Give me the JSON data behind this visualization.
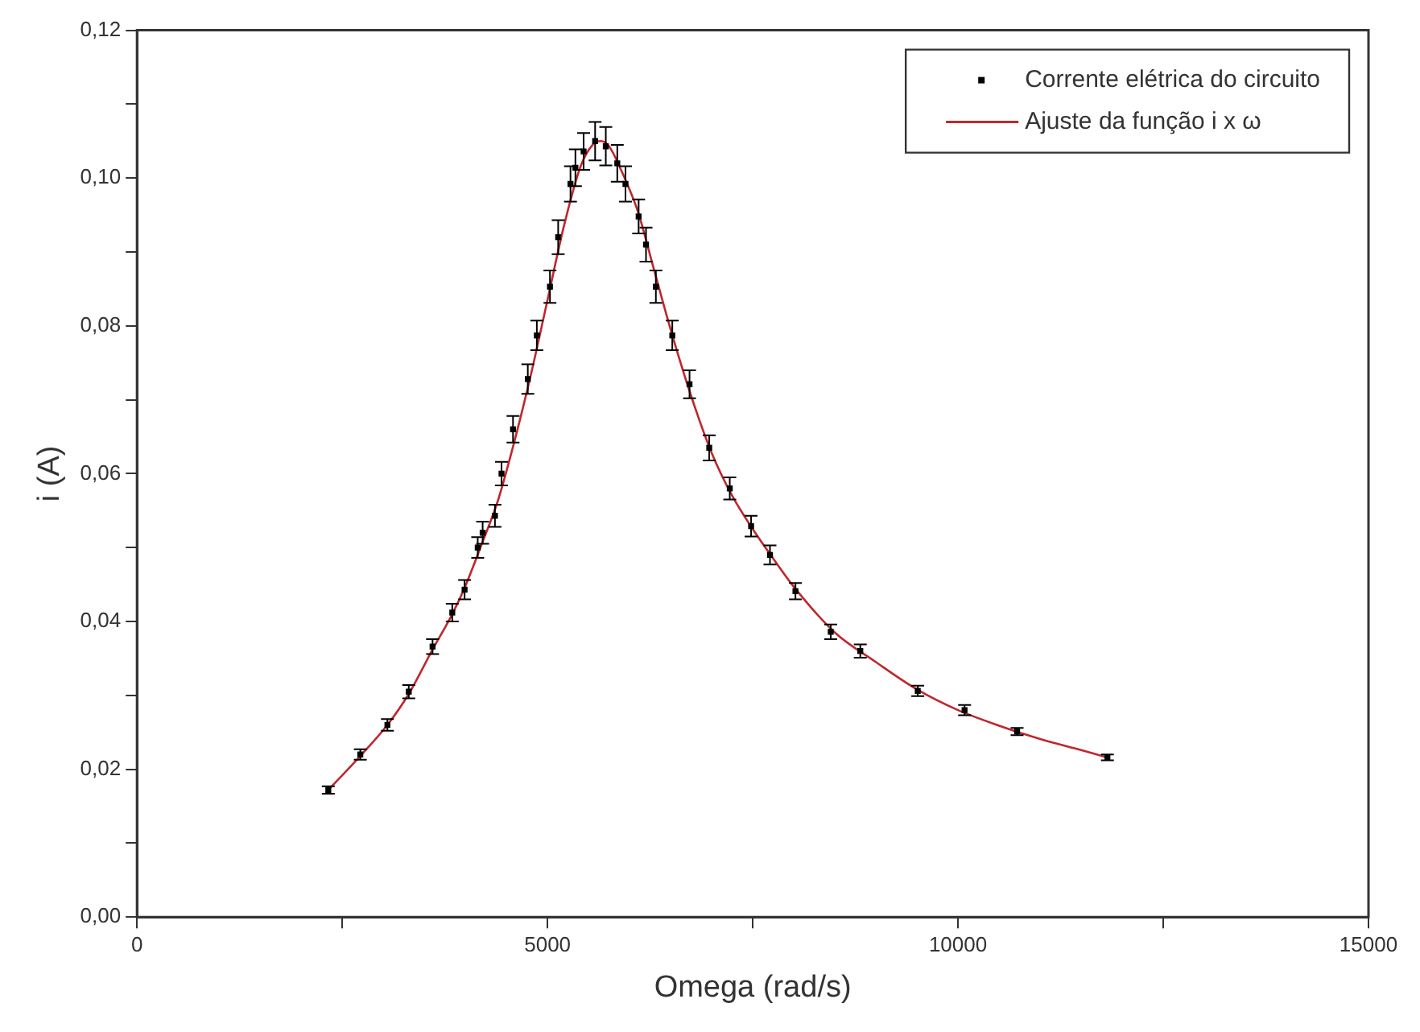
{
  "chart_data": {
    "type": "scatter",
    "xlabel": "Omega (rad/s)",
    "ylabel": "i (A)",
    "xlim": [
      0,
      15000
    ],
    "ylim": [
      0,
      0.12
    ],
    "xticks": [
      0,
      {
        "value": 2500,
        "label": null
      },
      5000,
      {
        "value": 7500,
        "label": null
      },
      10000,
      {
        "value": 12500,
        "label": null
      },
      15000
    ],
    "yticks": [
      {
        "value": 0,
        "label": "0,00"
      },
      {
        "value": 0.01,
        "label": null
      },
      {
        "value": 0.02,
        "label": "0,02"
      },
      {
        "value": 0.03,
        "label": null
      },
      {
        "value": 0.04,
        "label": "0,04"
      },
      {
        "value": 0.05,
        "label": null
      },
      {
        "value": 0.06,
        "label": "0,06"
      },
      {
        "value": 0.07,
        "label": null
      },
      {
        "value": 0.08,
        "label": "0,08"
      },
      {
        "value": 0.09,
        "label": null
      },
      {
        "value": 0.1,
        "label": "0,10"
      },
      {
        "value": 0.11,
        "label": null
      },
      {
        "value": 0.12,
        "label": "0,12"
      }
    ],
    "grid": false,
    "legend": "top right",
    "series": [
      {
        "name": "Corrente elétrica do circuito",
        "color": "#000000",
        "marker": "square",
        "x": [
          2330,
          2720,
          3050,
          3310,
          3600,
          3840,
          3990,
          4150,
          4210,
          4360,
          4440,
          4580,
          4760,
          4870,
          5030,
          5130,
          5280,
          5340,
          5440,
          5580,
          5710,
          5850,
          5950,
          6110,
          6200,
          6320,
          6520,
          6730,
          6970,
          7220,
          7480,
          7710,
          8020,
          8450,
          8810,
          9510,
          10080,
          10720,
          11820
        ],
        "values": [
          0.0172,
          0.022,
          0.026,
          0.0305,
          0.0366,
          0.0412,
          0.0443,
          0.05,
          0.052,
          0.0543,
          0.06,
          0.066,
          0.0728,
          0.0787,
          0.0853,
          0.092,
          0.0992,
          0.1014,
          0.1036,
          0.105,
          0.1043,
          0.102,
          0.0992,
          0.0948,
          0.091,
          0.0853,
          0.0787,
          0.0721,
          0.0635,
          0.058,
          0.0529,
          0.049,
          0.0441,
          0.0386,
          0.036,
          0.0306,
          0.028,
          0.0251,
          0.0216
        ],
        "errors": [
          0.0005,
          0.0007,
          0.0008,
          0.0009,
          0.001,
          0.0012,
          0.0013,
          0.0014,
          0.0015,
          0.0015,
          0.0016,
          0.0018,
          0.002,
          0.002,
          0.0022,
          0.0023,
          0.0024,
          0.0025,
          0.0025,
          0.0026,
          0.0026,
          0.0025,
          0.0024,
          0.0023,
          0.0023,
          0.0022,
          0.002,
          0.0019,
          0.0017,
          0.0015,
          0.0014,
          0.0013,
          0.0011,
          0.001,
          0.0009,
          0.0007,
          0.0007,
          0.0005,
          0.0004
        ]
      },
      {
        "name": "Ajuste da função i x ω",
        "type": "line",
        "color": "#c0272d",
        "marker": "none",
        "line_style": "solid",
        "x": [
          2330,
          2720,
          3050,
          3310,
          3600,
          3840,
          4000,
          4200,
          4400,
          4600,
          4800,
          5000,
          5200,
          5400,
          5550,
          5650,
          5750,
          5900,
          6100,
          6300,
          6500,
          6750,
          7000,
          7250,
          7500,
          7750,
          8000,
          8500,
          9000,
          9500,
          10000,
          10500,
          11000,
          11500,
          11820
        ],
        "values": [
          0.0172,
          0.0218,
          0.026,
          0.0302,
          0.0362,
          0.041,
          0.0448,
          0.0505,
          0.0565,
          0.0645,
          0.0735,
          0.0835,
          0.0935,
          0.1015,
          0.1045,
          0.105,
          0.1043,
          0.101,
          0.0955,
          0.0875,
          0.0795,
          0.0705,
          0.0628,
          0.057,
          0.0525,
          0.0485,
          0.0447,
          0.0385,
          0.0345,
          0.0308,
          0.028,
          0.0259,
          0.0241,
          0.0226,
          0.0216
        ]
      }
    ]
  }
}
